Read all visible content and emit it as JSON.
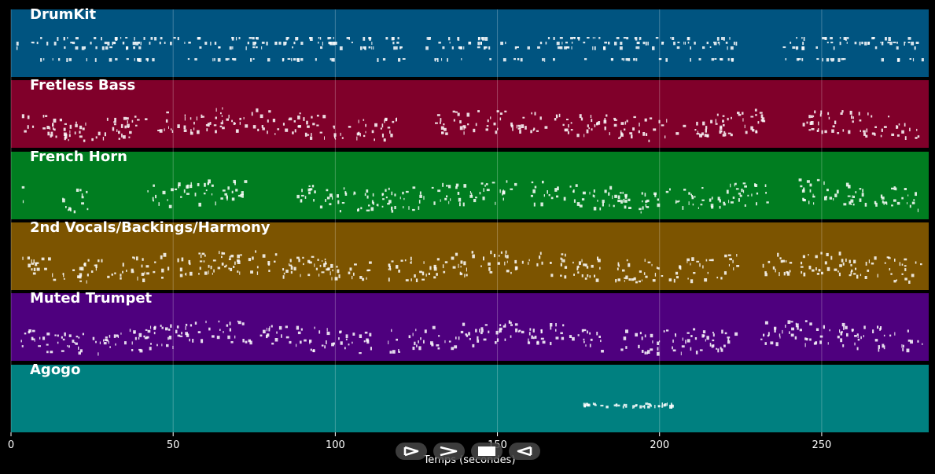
{
  "chart_data": {
    "type": "piano-roll",
    "xlabel": "Temps (secondes)",
    "xlim": [
      0,
      283
    ],
    "x_ticks": [
      "0",
      "50",
      "100",
      "150",
      "200",
      "250"
    ],
    "x_tick_values": [
      0,
      50,
      100,
      150,
      200,
      250
    ],
    "grid": true,
    "tracks": [
      {
        "name": "DrumKit",
        "color": "#005480",
        "active": [
          [
            1,
            2
          ],
          [
            6,
            122
          ],
          [
            127,
            225
          ],
          [
            236,
            281
          ]
        ]
      },
      {
        "name": "Fretless Bass",
        "color": "#80002a",
        "active": [
          [
            3,
            120
          ],
          [
            130,
            234
          ],
          [
            244,
            281
          ]
        ]
      },
      {
        "name": "French Horn",
        "color": "#007d20",
        "active": [
          [
            3,
            4
          ],
          [
            15,
            24
          ],
          [
            42,
            72
          ],
          [
            88,
            233
          ],
          [
            242,
            281
          ]
        ]
      },
      {
        "name": "2nd Vocals/Backings/Harmony",
        "color": "#7c5400",
        "active": [
          [
            3,
            112
          ],
          [
            116,
            182
          ],
          [
            186,
            224
          ],
          [
            231,
            281
          ]
        ]
      },
      {
        "name": "Muted Trumpet",
        "color": "#4e007e",
        "active": [
          [
            3,
            112
          ],
          [
            116,
            182
          ],
          [
            186,
            224
          ],
          [
            231,
            281
          ]
        ]
      },
      {
        "name": "Agogo",
        "color": "#008080",
        "active": [
          [
            176,
            204
          ]
        ]
      }
    ]
  },
  "controls": {
    "buttons": [
      {
        "name": "play-button",
        "icon": "play-icon"
      },
      {
        "name": "forward-button",
        "icon": "forward-icon"
      },
      {
        "name": "stop-button",
        "icon": "stop-icon"
      },
      {
        "name": "rewind-button",
        "icon": "rewind-icon"
      }
    ]
  }
}
